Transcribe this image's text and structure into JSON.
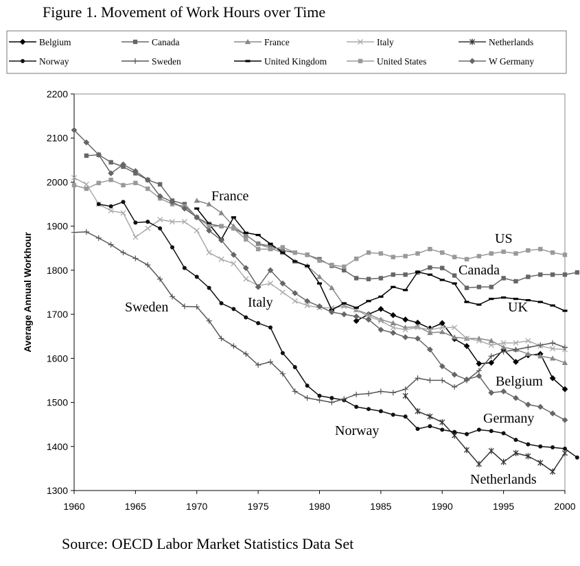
{
  "figure": {
    "title": "Figure 1.  Movement of Work Hours over Time",
    "source": "Source: OECD Labor Market Statistics Data Set"
  },
  "chart_data": {
    "type": "line",
    "xlabel": "",
    "ylabel": "Average Annual Workhour",
    "xlim": [
      1960,
      2000
    ],
    "ylim": [
      1300,
      2200
    ],
    "x_ticks": [
      "1960",
      "1965",
      "1970",
      "1975",
      "1980",
      "1985",
      "1990",
      "1995",
      "2000"
    ],
    "y_ticks": [
      "1300",
      "1400",
      "1500",
      "1600",
      "1700",
      "1800",
      "1900",
      "2000",
      "2100",
      "2200"
    ],
    "grid": false,
    "legend_position": "top",
    "series": [
      {
        "name": "Belgium",
        "color": "#000000",
        "marker": "diamond",
        "x_start": 1983,
        "values": [
          1685,
          1700,
          1712,
          1698,
          1688,
          1681,
          1668,
          1680,
          1644,
          1628,
          1588,
          1590,
          1620,
          1592,
          1607,
          1610,
          1555,
          1530
        ]
      },
      {
        "name": "Canada",
        "color": "#666666",
        "marker": "square",
        "x_start": 1961,
        "values": [
          2060,
          2062,
          2045,
          2035,
          2020,
          2005,
          1995,
          1958,
          1950,
          1920,
          1905,
          1900,
          1895,
          1880,
          1860,
          1855,
          1845,
          1840,
          1835,
          1825,
          1810,
          1800,
          1782,
          1780,
          1782,
          1790,
          1790,
          1795,
          1806,
          1805,
          1788,
          1760,
          1762,
          1762,
          1782,
          1775,
          1785,
          1790,
          1790,
          1790,
          1795
        ]
      },
      {
        "name": "France",
        "color": "#888888",
        "marker": "triangle",
        "x_start": 1970,
        "values": [
          1958,
          1950,
          1930,
          1900,
          1880,
          1860,
          1850,
          1840,
          1820,
          1810,
          1785,
          1760,
          1720,
          1710,
          1700,
          1688,
          1680,
          1670,
          1672,
          1658,
          1660,
          1648,
          1645,
          1645,
          1640,
          1625,
          1620,
          1610,
          1605,
          1600,
          1590
        ]
      },
      {
        "name": "Italy",
        "color": "#aaaaaa",
        "marker": "x",
        "x_start": 1960,
        "values": [
          2010,
          1995,
          1950,
          1935,
          1930,
          1875,
          1895,
          1915,
          1910,
          1910,
          1890,
          1840,
          1825,
          1815,
          1780,
          1765,
          1770,
          1750,
          1730,
          1720,
          1715,
          1715,
          1718,
          1710,
          1695,
          1685,
          1670,
          1665,
          1670,
          1665,
          1670,
          1670,
          1645,
          1640,
          1630,
          1635,
          1635,
          1640,
          1628,
          1622,
          1620
        ]
      },
      {
        "name": "Netherlands",
        "color": "#333333",
        "marker": "asterisk",
        "x_start": 1987,
        "values": [
          1515,
          1480,
          1468,
          1455,
          1425,
          1392,
          1360,
          1390,
          1365,
          1385,
          1378,
          1363,
          1343,
          1385
        ]
      },
      {
        "name": "Norway",
        "color": "#111111",
        "marker": "circle",
        "x_start": 1962,
        "values": [
          1950,
          1945,
          1955,
          1908,
          1910,
          1895,
          1852,
          1805,
          1785,
          1760,
          1725,
          1712,
          1693,
          1680,
          1670,
          1612,
          1580,
          1538,
          1515,
          1510,
          1505,
          1490,
          1485,
          1480,
          1472,
          1468,
          1440,
          1446,
          1438,
          1433,
          1428,
          1438,
          1435,
          1430,
          1415,
          1405,
          1400,
          1398,
          1395,
          1375
        ]
      },
      {
        "name": "Sweden",
        "color": "#555555",
        "marker": "plus",
        "x_start": 1960,
        "values": [
          1886,
          1887,
          1873,
          1858,
          1840,
          1827,
          1812,
          1780,
          1740,
          1718,
          1717,
          1685,
          1645,
          1628,
          1610,
          1585,
          1592,
          1565,
          1525,
          1510,
          1505,
          1500,
          1508,
          1518,
          1520,
          1525,
          1522,
          1530,
          1555,
          1550,
          1550,
          1535,
          1550,
          1572,
          1605,
          1615,
          1620,
          1625,
          1630,
          1635,
          1625
        ]
      },
      {
        "name": "United Kingdom",
        "color": "#000000",
        "marker": "dash",
        "x_start": 1970,
        "values": [
          1940,
          1905,
          1870,
          1920,
          1885,
          1880,
          1860,
          1840,
          1820,
          1810,
          1770,
          1710,
          1725,
          1715,
          1730,
          1740,
          1762,
          1755,
          1796,
          1790,
          1778,
          1770,
          1728,
          1722,
          1735,
          1738,
          1735,
          1732,
          1728,
          1720,
          1708
        ]
      },
      {
        "name": "United States",
        "color": "#999999",
        "marker": "square",
        "x_start": 1960,
        "values": [
          1993,
          1985,
          1998,
          2005,
          1993,
          1998,
          1985,
          1963,
          1950,
          1945,
          1920,
          1900,
          1900,
          1895,
          1870,
          1848,
          1848,
          1852,
          1840,
          1835,
          1822,
          1812,
          1808,
          1826,
          1840,
          1838,
          1830,
          1832,
          1838,
          1848,
          1840,
          1830,
          1825,
          1832,
          1838,
          1842,
          1838,
          1845,
          1848,
          1840,
          1835
        ]
      },
      {
        "name": "W Germany",
        "color": "#666666",
        "marker": "diamond",
        "x_start": 1960,
        "values": [
          2118,
          2090,
          2062,
          2020,
          2040,
          2025,
          2005,
          1968,
          1955,
          1940,
          1920,
          1890,
          1868,
          1835,
          1805,
          1762,
          1800,
          1770,
          1748,
          1730,
          1718,
          1705,
          1700,
          1695,
          1688,
          1665,
          1658,
          1648,
          1645,
          1620,
          1582,
          1563,
          1552,
          1560,
          1522,
          1525,
          1510,
          1495,
          1490,
          1475,
          1460
        ]
      }
    ],
    "annotations": [
      "France",
      "US",
      "Canada",
      "UK",
      "Italy",
      "Sweden",
      "Belgium",
      "Germany",
      "Norway",
      "Netherlands"
    ]
  }
}
